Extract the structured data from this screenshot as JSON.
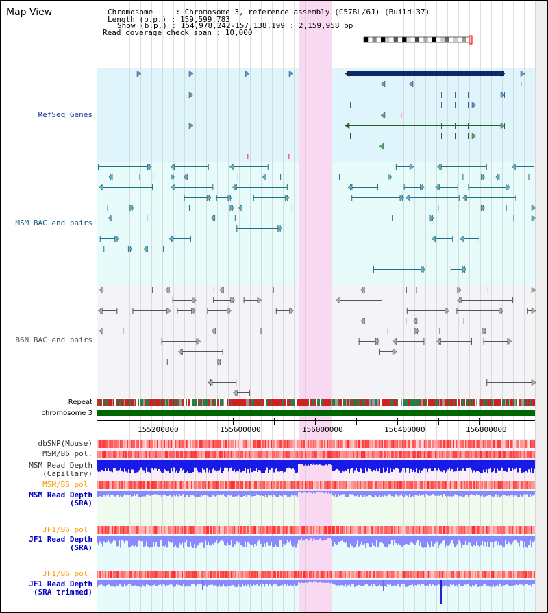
{
  "header": {
    "title": "Map View",
    "chromosome_line": "Chromosome     : Chromosome 3, reference assembly (C57BL/6J) (Build 37)",
    "length_line": "Length (b.p.) : 159,599,783",
    "show_line": "Show (b.p.) : 154,978,242-157,138,199 : 2,159,958 bp",
    "coverage_line": "Read coverage check span : 10,000"
  },
  "tracks": {
    "refseq": "RefSeq Genes",
    "msm_bac": "MSM BAC end pairs",
    "b6n_bac": "B6N BAC end pairs",
    "repeat": "Repeat",
    "chromosome": "chromosome 3",
    "dbsnp": "dbSNP(Mouse)",
    "msm_b6_pol": "MSM/B6 pol.",
    "msm_depth_cap_1": "MSM Read Depth",
    "msm_depth_cap_2": "(Capillary)",
    "msm_b6_pol2": "MSM/B6 pol.",
    "msm_depth_sra_1": "MSM Read Depth",
    "msm_depth_sra_2": "(SRA)",
    "jf1_pol": "JF1/B6 pol.",
    "jf1_depth_sra_1": "JF1 Read Depth",
    "jf1_depth_sra_2": "(SRA)",
    "jf1_pol2": "JF1/B6 pol.",
    "jf1_depth_trim_1": "JF1 Read Depth",
    "jf1_depth_trim_2": "(SRA trimmed)"
  },
  "axis": {
    "ticks": [
      "155200000",
      "155600000",
      "156000000",
      "156400000",
      "156800000"
    ]
  },
  "colors": {
    "refseq_bg": "#e0f4fb",
    "msm_bg": "#e8fbfb",
    "b6n_bg": "#f4f4f8",
    "highlight": "#f9d9f1",
    "gene_blue": "#336699",
    "gene_green": "#226622",
    "gene_navy": "#0b2a66",
    "msm_line": "#226e88",
    "b6n_line": "#555555",
    "repeat_red": "#d02020",
    "chrom_green": "#006600",
    "depth_blue": "#1a1ae8",
    "depth_light": "#8888ff",
    "pol_label": "#ff9900",
    "depth_label": "#0000cc"
  }
}
